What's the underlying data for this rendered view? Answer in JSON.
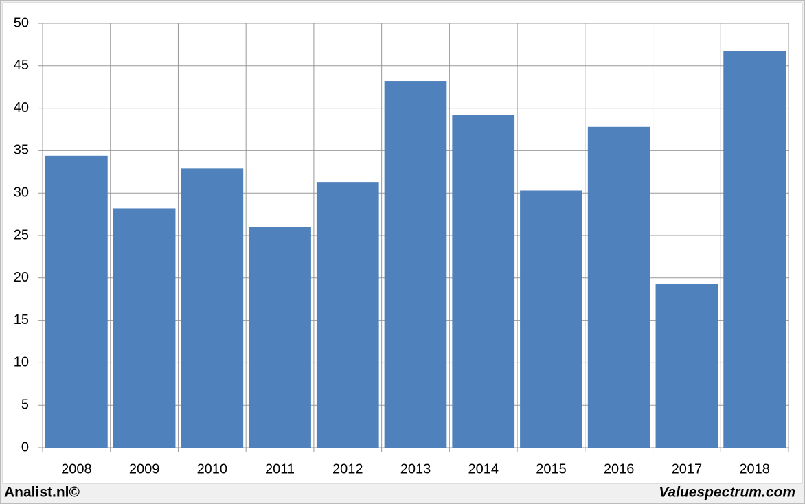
{
  "chart_data": {
    "type": "bar",
    "categories": [
      "2008",
      "2009",
      "2010",
      "2011",
      "2012",
      "2013",
      "2014",
      "2015",
      "2016",
      "2017",
      "2018"
    ],
    "values": [
      34.4,
      28.2,
      32.9,
      26.0,
      31.3,
      43.2,
      39.2,
      30.3,
      37.8,
      19.3,
      46.7
    ],
    "color": "#4f81bd",
    "ylim": [
      0,
      50
    ],
    "yticks": [
      0,
      5,
      10,
      15,
      20,
      25,
      30,
      35,
      40,
      45,
      50
    ],
    "grid": true
  },
  "footer": {
    "left": "Analist.nl©",
    "right": "Valuespectrum.com"
  }
}
